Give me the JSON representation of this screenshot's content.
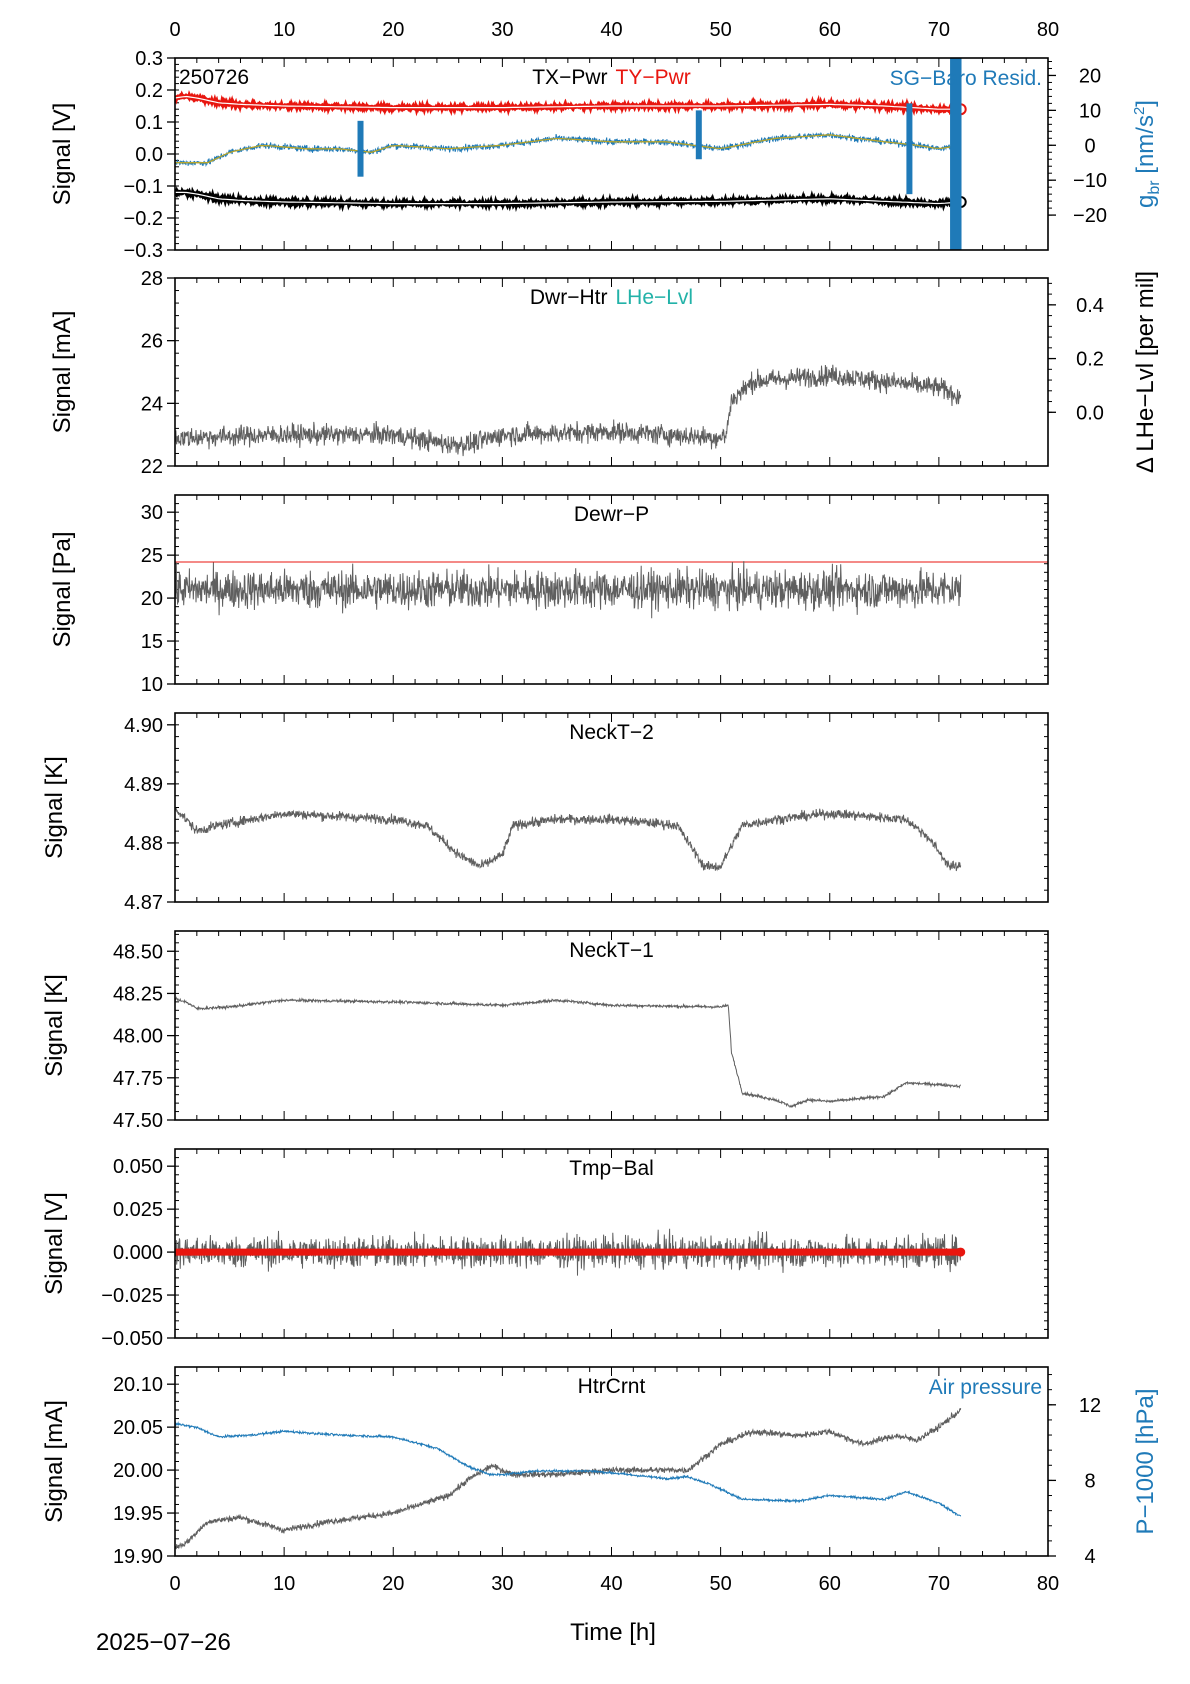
{
  "figure": {
    "date_label": "2025−07−26",
    "x_axis_label": "Time [h]",
    "x_ticks": [
      0,
      10,
      20,
      30,
      40,
      50,
      60,
      70,
      80
    ],
    "xlim": [
      0,
      80
    ]
  },
  "chart_data": [
    {
      "type": "line",
      "panel_id": "p1",
      "tag": "250726",
      "titles": [
        {
          "text": "TX−Pwr",
          "color": "#000000"
        },
        {
          "text": "TY−Pwr",
          "color": "#e8160f"
        }
      ],
      "right_title": {
        "text": "SG−Baro Resid.",
        "color": "#1f7ab8"
      },
      "ylabel": "Signal [V]",
      "ylim": [
        -0.3,
        0.3
      ],
      "yticks": [
        -0.3,
        -0.2,
        -0.1,
        0.0,
        0.1,
        0.2,
        0.3
      ],
      "ytick_labels": [
        "−0.3",
        "−0.2",
        "−0.1",
        "0.0",
        "0.1",
        "0.2",
        "0.3"
      ],
      "y2label": "g_br [nm/s²]",
      "y2lim": [
        -30,
        25
      ],
      "y2ticks": [
        -20,
        -10,
        0,
        10,
        20
      ],
      "y2tick_labels": [
        "−20",
        "−10",
        "0",
        "10",
        "20"
      ],
      "series": [
        {
          "name": "TX−Pwr",
          "axis": "left",
          "color": "#000000",
          "noise": 0.004,
          "x": [
            0,
            1,
            2,
            4,
            6,
            10,
            20,
            30,
            40,
            50,
            60,
            65,
            70,
            72
          ],
          "y": [
            -0.12,
            -0.12,
            -0.125,
            -0.14,
            -0.145,
            -0.15,
            -0.155,
            -0.155,
            -0.15,
            -0.148,
            -0.14,
            -0.148,
            -0.155,
            -0.15
          ]
        },
        {
          "name": "TY−Pwr",
          "axis": "left",
          "color": "#e8160f",
          "noise": 0.004,
          "x": [
            0,
            1,
            2,
            4,
            6,
            10,
            20,
            30,
            40,
            50,
            60,
            65,
            70,
            72
          ],
          "y": [
            0.175,
            0.18,
            0.175,
            0.16,
            0.155,
            0.15,
            0.145,
            0.145,
            0.15,
            0.15,
            0.155,
            0.15,
            0.14,
            0.14
          ]
        },
        {
          "name": "SG−Baro Resid.",
          "axis": "right",
          "color": "#1f7ab8",
          "noise": 0.9,
          "x": [
            0,
            3,
            5,
            8,
            12,
            15,
            18,
            20,
            25,
            30,
            35,
            40,
            45,
            50,
            55,
            60,
            65,
            68,
            70,
            72
          ],
          "y": [
            -5,
            -5,
            -2,
            0,
            -1,
            -1,
            -2,
            0,
            -1,
            0,
            2,
            1,
            1,
            -1,
            2,
            3,
            1,
            0,
            -1,
            0
          ]
        },
        {
          "name": "SG−Baro Resid. fit",
          "axis": "right",
          "color": "#b7a52a",
          "noise": 0,
          "x": [
            0,
            3,
            5,
            8,
            12,
            15,
            18,
            20,
            25,
            30,
            35,
            40,
            45,
            50,
            55,
            60,
            65,
            68,
            70,
            72
          ],
          "y": [
            -5,
            -5,
            -2,
            0,
            -1,
            -1,
            -2,
            0,
            -1,
            0,
            2,
            1,
            1,
            -1,
            2,
            3,
            1,
            0,
            -1,
            0
          ]
        }
      ],
      "spikes": [
        {
          "x": 17.0,
          "min": -9,
          "max": 7
        },
        {
          "x": 48.0,
          "min": -4,
          "max": 10
        },
        {
          "x": 67.3,
          "min": -14,
          "max": 12
        },
        {
          "x": 71.3,
          "min": -30,
          "max": 25
        },
        {
          "x": 71.8,
          "min": -30,
          "max": 25
        }
      ]
    },
    {
      "type": "line",
      "panel_id": "p2",
      "titles": [
        {
          "text": "Dwr−Htr",
          "color": "#000000"
        },
        {
          "text": "LHe−Lvl",
          "color": "#22b2a8"
        }
      ],
      "ylabel": "Signal [mA]",
      "ylim": [
        22,
        28
      ],
      "yticks": [
        22,
        24,
        26,
        28
      ],
      "ytick_labels": [
        "22",
        "24",
        "26",
        "28"
      ],
      "y2label": "Δ LHe−Lvl [per mil]",
      "y2lim": [
        -0.2,
        0.5
      ],
      "y2ticks": [
        0.0,
        0.2,
        0.4
      ],
      "y2tick_labels": [
        "0.0",
        "0.2",
        "0.4"
      ],
      "series": [
        {
          "name": "Dwr−Htr",
          "axis": "left",
          "color": "#5f5f5f",
          "noise": 0.32,
          "x": [
            0,
            10,
            20,
            25,
            27,
            30,
            40,
            50,
            50.5,
            51,
            53,
            60,
            70,
            72
          ],
          "y": [
            22.9,
            23.0,
            23.0,
            22.7,
            22.7,
            23.0,
            23.1,
            22.9,
            23.0,
            24.1,
            24.7,
            24.9,
            24.5,
            24.2
          ]
        }
      ]
    },
    {
      "type": "line",
      "panel_id": "p3",
      "titles": [
        {
          "text": "Dewr−P",
          "color": "#000000"
        }
      ],
      "ylabel": "Signal [Pa]",
      "ylim": [
        10,
        32
      ],
      "yticks": [
        10,
        15,
        20,
        25,
        30
      ],
      "ytick_labels": [
        "10",
        "15",
        "20",
        "25",
        "30"
      ],
      "threshold": {
        "value": 24.2,
        "color": "#e8160f"
      },
      "series": [
        {
          "name": "Dewr−P",
          "axis": "left",
          "color": "#5f5f5f",
          "noise": 2.2,
          "x": [
            0,
            72
          ],
          "y": [
            21,
            21
          ]
        }
      ]
    },
    {
      "type": "line",
      "panel_id": "p4",
      "titles": [
        {
          "text": "NeckT−2",
          "color": "#000000"
        }
      ],
      "ylabel": "Signal [K]",
      "ylim": [
        4.87,
        4.902
      ],
      "yticks": [
        4.87,
        4.88,
        4.89,
        4.9
      ],
      "ytick_labels": [
        "4.87",
        "4.88",
        "4.89",
        "4.90"
      ],
      "series": [
        {
          "name": "NeckT−2",
          "axis": "left",
          "color": "#5f5f5f",
          "noise": 0.0008,
          "x": [
            0,
            2,
            4,
            10,
            20,
            23,
            26,
            28,
            30,
            31,
            35,
            40,
            46,
            48.5,
            50,
            52,
            55,
            60,
            67,
            69,
            71,
            72
          ],
          "y": [
            4.886,
            4.882,
            4.883,
            4.885,
            4.884,
            4.883,
            4.878,
            4.876,
            4.878,
            4.883,
            4.884,
            4.884,
            4.883,
            4.876,
            4.876,
            4.883,
            4.884,
            4.885,
            4.884,
            4.881,
            4.876,
            4.876
          ]
        }
      ]
    },
    {
      "type": "line",
      "panel_id": "p5",
      "titles": [
        {
          "text": "NeckT−1",
          "color": "#000000"
        }
      ],
      "ylabel": "Signal [K]",
      "ylim": [
        47.5,
        48.62
      ],
      "yticks": [
        47.5,
        47.75,
        48.0,
        48.25,
        48.5
      ],
      "ytick_labels": [
        "47.50",
        "47.75",
        "48.00",
        "48.25",
        "48.50"
      ],
      "series": [
        {
          "name": "NeckT−1",
          "axis": "left",
          "color": "#5f5f5f",
          "noise": 0.008,
          "x": [
            0,
            1,
            2,
            5,
            10,
            20,
            30,
            35,
            40,
            50,
            50.7,
            51,
            52,
            55,
            56.5,
            58,
            60,
            65,
            67,
            70,
            72
          ],
          "y": [
            48.22,
            48.2,
            48.16,
            48.17,
            48.21,
            48.2,
            48.18,
            48.21,
            48.18,
            48.17,
            48.18,
            47.9,
            47.66,
            47.62,
            47.58,
            47.62,
            47.61,
            47.64,
            47.72,
            47.71,
            47.7
          ]
        }
      ]
    },
    {
      "type": "line",
      "panel_id": "p6",
      "titles": [
        {
          "text": "Tmp−Bal",
          "color": "#000000"
        }
      ],
      "ylabel": "Signal [V]",
      "ylim": [
        -0.05,
        0.06
      ],
      "yticks": [
        -0.05,
        -0.025,
        0.0,
        0.025,
        0.05
      ],
      "ytick_labels": [
        "−0.050",
        "−0.025",
        "0.000",
        "0.025",
        "0.050"
      ],
      "series": [
        {
          "name": "Tmp−Bal",
          "axis": "left",
          "color": "#5f5f5f",
          "noise": 0.009,
          "x": [
            0,
            72
          ],
          "y": [
            0.0,
            0.0
          ]
        },
        {
          "name": "Tmp−Bal zero",
          "axis": "left",
          "color": "#e8160f",
          "noise": 0,
          "thick": true,
          "x": [
            0,
            72
          ],
          "y": [
            0.0,
            0.0
          ]
        }
      ]
    },
    {
      "type": "line",
      "panel_id": "p7",
      "titles": [
        {
          "text": "HtrCrnt",
          "color": "#000000"
        }
      ],
      "right_title": {
        "text": "Air pressure",
        "color": "#1f7ab8"
      },
      "ylabel": "Signal [mA]",
      "ylim": [
        19.9,
        20.12
      ],
      "yticks": [
        19.9,
        19.95,
        20.0,
        20.05,
        20.1
      ],
      "ytick_labels": [
        "19.90",
        "19.95",
        "20.00",
        "20.05",
        "20.10"
      ],
      "y2label": "P−1000 [hPa]",
      "y2lim": [
        4,
        14
      ],
      "y2ticks": [
        4,
        8,
        12
      ],
      "y2tick_labels": [
        "4",
        "8",
        "12"
      ],
      "series": [
        {
          "name": "HtrCrnt",
          "axis": "left",
          "color": "#5f5f5f",
          "noise": 0.0035,
          "x": [
            0,
            1,
            3,
            6,
            10,
            14,
            20,
            25,
            27,
            29,
            30,
            31,
            35,
            40,
            45,
            47,
            50,
            53,
            57,
            60,
            63,
            66,
            68,
            70,
            72
          ],
          "y": [
            19.91,
            19.915,
            19.94,
            19.945,
            19.93,
            19.94,
            19.95,
            19.97,
            19.99,
            20.005,
            20.0,
            19.995,
            19.995,
            20.0,
            20.0,
            20.0,
            20.03,
            20.045,
            20.04,
            20.045,
            20.03,
            20.04,
            20.035,
            20.05,
            20.07
          ]
        },
        {
          "name": "Air pressure",
          "axis": "right",
          "color": "#1f7ab8",
          "noise": 0.06,
          "x": [
            0,
            2,
            4,
            7,
            10,
            15,
            20,
            24,
            27,
            29,
            30,
            33,
            38,
            40,
            45,
            47,
            49,
            52,
            57,
            60,
            65,
            67,
            68,
            70,
            72
          ],
          "y": [
            11,
            10.8,
            10.3,
            10.4,
            10.6,
            10.4,
            10.3,
            9.7,
            8.7,
            8.3,
            8.3,
            8.5,
            8.5,
            8.4,
            8.1,
            8.2,
            7.8,
            7.0,
            6.9,
            7.2,
            7.0,
            7.4,
            7.2,
            6.8,
            6.1
          ]
        }
      ]
    }
  ]
}
